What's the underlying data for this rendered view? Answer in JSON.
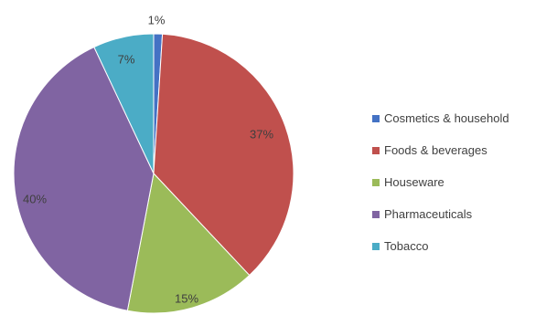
{
  "chart_data": {
    "type": "pie",
    "categories": [
      "Cosmetics & household",
      "Foods & beverages",
      "Houseware",
      "Pharmaceuticals",
      "Tobacco"
    ],
    "values": [
      1,
      37,
      15,
      40,
      7
    ],
    "labels": [
      "1%",
      "37%",
      "15%",
      "40%",
      "7%"
    ],
    "colors": [
      "#4472c4",
      "#c0504d",
      "#9bbb59",
      "#8064a2",
      "#4bacc6"
    ],
    "legend_position": "right",
    "title": ""
  }
}
